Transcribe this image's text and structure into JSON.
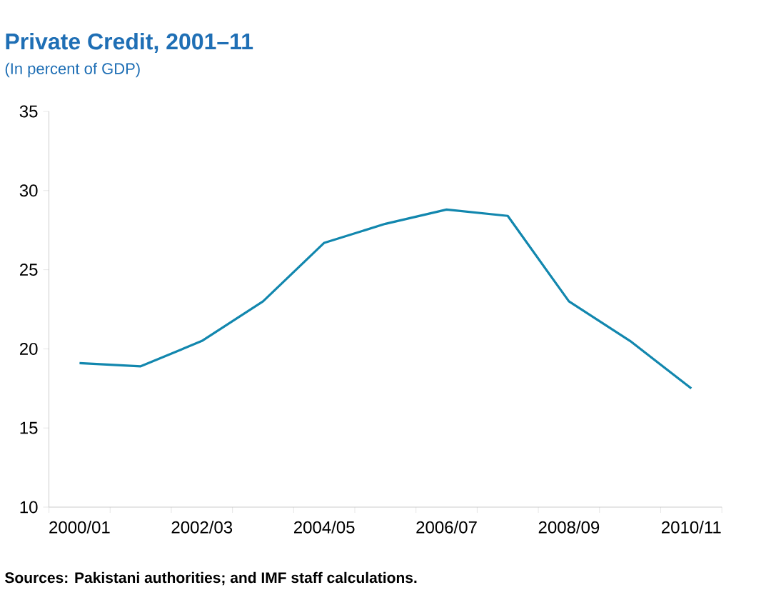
{
  "chart_data": {
    "type": "line",
    "title": "Private Credit, 2001–11",
    "subtitle": "(In percent of GDP)",
    "categories": [
      "2000/01",
      null,
      "2002/03",
      null,
      "2004/05",
      null,
      "2006/07",
      null,
      "2008/09",
      null,
      "2010/11"
    ],
    "series": [
      {
        "color": "#1287ae",
        "values": [
          19.1,
          18.9,
          20.5,
          23.0,
          26.7,
          27.9,
          28.8,
          28.4,
          23.0,
          20.5,
          17.5
        ]
      }
    ],
    "ylim": [
      10,
      35
    ],
    "yticks": [
      10,
      15,
      20,
      25,
      30,
      35
    ],
    "marker": "none",
    "annotations": [
      "Sources: Pakistani authorities; and IMF staff calculations."
    ]
  }
}
